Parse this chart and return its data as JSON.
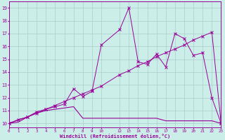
{
  "xlabel": "Windchill (Refroidissement éolien,°C)",
  "background_color": "#cceee8",
  "grid_color": "#aacccc",
  "line_color": "#990099",
  "xmin": 0,
  "xmax": 23,
  "ymin": 9.7,
  "ymax": 19.5,
  "yticks": [
    10,
    11,
    12,
    13,
    14,
    15,
    16,
    17,
    18,
    19
  ],
  "xticks": [
    0,
    1,
    2,
    3,
    4,
    5,
    6,
    7,
    8,
    9,
    10,
    12,
    13,
    14,
    15,
    16,
    17,
    18,
    19,
    20,
    21,
    22,
    23
  ],
  "series": [
    {
      "x": [
        0,
        1,
        2,
        3,
        4,
        5,
        6,
        7,
        8,
        9,
        10,
        12,
        13,
        14,
        15,
        16,
        17,
        18,
        19,
        20,
        21,
        22,
        23
      ],
      "y": [
        10.0,
        10.3,
        10.5,
        10.8,
        11.1,
        11.4,
        11.7,
        12.0,
        12.3,
        12.6,
        12.9,
        13.8,
        14.1,
        14.5,
        14.8,
        15.2,
        15.5,
        15.8,
        16.1,
        16.5,
        16.8,
        17.1,
        10.0
      ],
      "marker": true
    },
    {
      "x": [
        0,
        2,
        3,
        4,
        5,
        6,
        7,
        8,
        9,
        10,
        12,
        13,
        14,
        15,
        16,
        17,
        18,
        19,
        20,
        21,
        22,
        23
      ],
      "y": [
        10.0,
        10.5,
        10.9,
        11.1,
        11.3,
        11.5,
        12.7,
        12.1,
        12.5,
        16.1,
        17.3,
        19.0,
        14.8,
        14.6,
        15.4,
        14.4,
        17.0,
        16.6,
        15.3,
        15.5,
        12.0,
        10.0
      ],
      "marker": true
    },
    {
      "x": [
        0,
        1,
        2,
        3,
        4,
        5,
        6,
        7,
        8,
        9,
        10,
        12,
        13,
        14,
        15,
        16,
        17,
        18,
        19,
        20,
        21,
        22,
        23
      ],
      "y": [
        10.0,
        10.1,
        10.5,
        10.8,
        11.0,
        11.1,
        11.2,
        11.3,
        10.4,
        10.4,
        10.4,
        10.4,
        10.4,
        10.4,
        10.4,
        10.4,
        10.2,
        10.2,
        10.2,
        10.2,
        10.2,
        10.2,
        10.0
      ],
      "marker": false
    }
  ]
}
